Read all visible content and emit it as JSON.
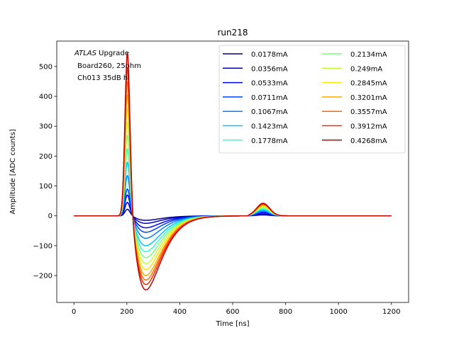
{
  "chart_data": {
    "type": "line",
    "title": "run218",
    "xlabel": "Time [ns]",
    "ylabel": "Amplitude [ADC counts]",
    "xlim": [
      -65,
      1265
    ],
    "ylim": [
      -290,
      585
    ],
    "xticks": [
      0,
      200,
      400,
      600,
      800,
      1000,
      1200
    ],
    "yticks": [
      -200,
      -100,
      0,
      100,
      200,
      300,
      400,
      500
    ],
    "tick_labels_x": [
      "0",
      "200",
      "400",
      "600",
      "800",
      "1000",
      "1200"
    ],
    "tick_labels_y": [
      "−200",
      "−100",
      "0",
      "100",
      "200",
      "300",
      "400",
      "500"
    ],
    "grid": false,
    "legend_position": "top-right",
    "legend_columns": 2,
    "annotation": {
      "line1_italic": "ATLAS",
      "line1_rest": " Upgrade",
      "line2": " Board260, 25ohm",
      "line3": " Ch013 35dB hi"
    },
    "series": [
      {
        "name": "0.0178mA",
        "color": "#00007f",
        "peak": 22,
        "undershoot": -15,
        "bump": 3
      },
      {
        "name": "0.0356mA",
        "color": "#0000c8",
        "peak": 45,
        "undershoot": -25,
        "bump": 6
      },
      {
        "name": "0.0533mA",
        "color": "#0000ff",
        "peak": 70,
        "undershoot": -40,
        "bump": 10
      },
      {
        "name": "0.0711mA",
        "color": "#0040ff",
        "peak": 90,
        "undershoot": -55,
        "bump": 13
      },
      {
        "name": "0.1067mA",
        "color": "#0080ff",
        "peak": 135,
        "undershoot": -75,
        "bump": 16
      },
      {
        "name": "0.1423mA",
        "color": "#00c4ff",
        "peak": 180,
        "undershoot": -100,
        "bump": 20
      },
      {
        "name": "0.1778mA",
        "color": "#37ffc7",
        "peak": 225,
        "undershoot": -120,
        "bump": 23
      },
      {
        "name": "0.2134mA",
        "color": "#7dff7a",
        "peak": 270,
        "undershoot": -140,
        "bump": 27
      },
      {
        "name": "0.249mA",
        "color": "#c4ff33",
        "peak": 315,
        "undershoot": -160,
        "bump": 30
      },
      {
        "name": "0.2845mA",
        "color": "#ffe600",
        "peak": 360,
        "undershoot": -180,
        "bump": 33
      },
      {
        "name": "0.3201mA",
        "color": "#ffa800",
        "peak": 405,
        "undershoot": -200,
        "bump": 36
      },
      {
        "name": "0.3557mA",
        "color": "#ff6800",
        "peak": 450,
        "undershoot": -215,
        "bump": 38
      },
      {
        "name": "0.3912mA",
        "color": "#ff2900",
        "peak": 495,
        "undershoot": -230,
        "bump": 40
      },
      {
        "name": "0.4268mA",
        "color": "#c80000",
        "peak": 545,
        "undershoot": -248,
        "bump": 42
      }
    ]
  }
}
